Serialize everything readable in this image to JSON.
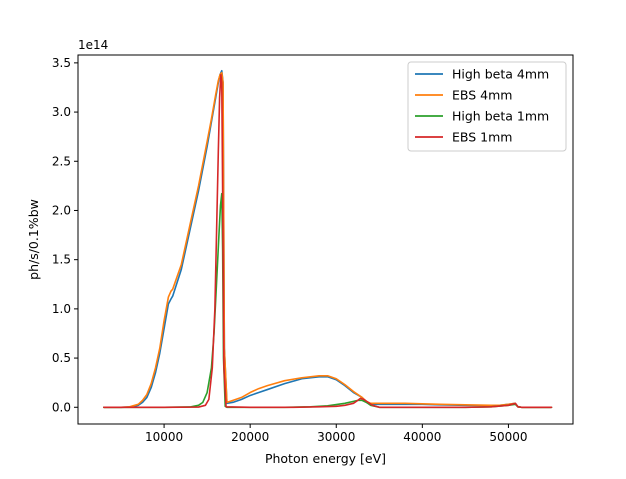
{
  "chart_data": {
    "type": "line",
    "xlabel": "Photon energy [eV]",
    "ylabel": "ph/s/0.1%bw",
    "y_offset_text": "1e14",
    "xlim": [
      0,
      57500
    ],
    "ylim": [
      -0.17,
      3.58
    ],
    "x_ticks": [
      10000,
      20000,
      30000,
      40000,
      50000
    ],
    "x_tick_labels": [
      "10000",
      "20000",
      "30000",
      "40000",
      "50000"
    ],
    "y_ticks": [
      0.0,
      0.5,
      1.0,
      1.5,
      2.0,
      2.5,
      3.0,
      3.5
    ],
    "y_tick_labels": [
      "0.0",
      "0.5",
      "1.0",
      "1.5",
      "2.0",
      "2.5",
      "3.0",
      "3.5"
    ],
    "grid": false,
    "legend_position": "top-right",
    "y_unit_scale": "1e14",
    "series": [
      {
        "name": "High beta 4mm",
        "color": "#1f77b4",
        "x": [
          3000,
          5000,
          6000,
          7000,
          7500,
          8000,
          8500,
          9000,
          9500,
          10000,
          10500,
          10800,
          11000,
          12000,
          13000,
          14000,
          15000,
          15500,
          16000,
          16300,
          16500,
          16700,
          16850,
          17000,
          17300,
          18000,
          19000,
          20000,
          21000,
          22000,
          24000,
          26000,
          28000,
          29000,
          30000,
          31000,
          32000,
          33000,
          33500,
          34000,
          35000,
          38000,
          40000,
          42000,
          45000,
          48000,
          49000,
          50000,
          50800,
          51100,
          51500,
          55000
        ],
        "y": [
          0,
          0,
          0.003,
          0.02,
          0.05,
          0.1,
          0.2,
          0.35,
          0.55,
          0.8,
          1.05,
          1.1,
          1.13,
          1.4,
          1.8,
          2.2,
          2.65,
          2.9,
          3.15,
          3.3,
          3.38,
          3.42,
          3.3,
          0.6,
          0.04,
          0.05,
          0.08,
          0.12,
          0.15,
          0.18,
          0.24,
          0.29,
          0.31,
          0.31,
          0.28,
          0.22,
          0.15,
          0.1,
          0.05,
          0.03,
          0.03,
          0.03,
          0.03,
          0.025,
          0.02,
          0.02,
          0.02,
          0.03,
          0.04,
          0.005,
          0,
          0
        ]
      },
      {
        "name": "EBS 4mm",
        "color": "#ff7f0e",
        "x": [
          3000,
          5000,
          6000,
          7000,
          7500,
          8000,
          8500,
          9000,
          9500,
          10000,
          10500,
          10800,
          11000,
          12000,
          13000,
          14000,
          15000,
          15500,
          16000,
          16300,
          16500,
          16700,
          16850,
          17000,
          17300,
          18000,
          19000,
          20000,
          21000,
          22000,
          24000,
          26000,
          28000,
          29000,
          30000,
          31000,
          32000,
          33000,
          33500,
          34000,
          35000,
          38000,
          40000,
          42000,
          45000,
          48000,
          49000,
          50000,
          50800,
          51100,
          51500,
          55000
        ],
        "y": [
          0,
          0,
          0.005,
          0.03,
          0.07,
          0.13,
          0.24,
          0.4,
          0.6,
          0.88,
          1.12,
          1.18,
          1.2,
          1.45,
          1.85,
          2.25,
          2.7,
          2.93,
          3.18,
          3.32,
          3.38,
          3.4,
          3.3,
          0.6,
          0.05,
          0.07,
          0.1,
          0.15,
          0.19,
          0.22,
          0.27,
          0.3,
          0.32,
          0.32,
          0.29,
          0.23,
          0.16,
          0.1,
          0.06,
          0.04,
          0.04,
          0.04,
          0.035,
          0.03,
          0.025,
          0.02,
          0.02,
          0.03,
          0.04,
          0.005,
          0,
          0
        ]
      },
      {
        "name": "High beta 1mm",
        "color": "#2ca02c",
        "x": [
          3000,
          10000,
          13000,
          14000,
          14500,
          15000,
          15500,
          15800,
          16000,
          16200,
          16400,
          16550,
          16700,
          16800,
          16900,
          17100,
          17300,
          20000,
          24000,
          27000,
          29000,
          31000,
          32000,
          32500,
          33000,
          33500,
          34000,
          35000,
          40000,
          45000,
          48000,
          50000,
          50800,
          51100,
          51500,
          55000
        ],
        "y": [
          0,
          0,
          0.003,
          0.02,
          0.05,
          0.15,
          0.4,
          0.75,
          1.1,
          1.45,
          1.8,
          2.05,
          2.17,
          1.6,
          0.5,
          0.01,
          0,
          0,
          0,
          0.005,
          0.015,
          0.04,
          0.06,
          0.07,
          0.07,
          0.05,
          0.02,
          0,
          0,
          0,
          0.005,
          0.02,
          0.03,
          0.005,
          0,
          0
        ]
      },
      {
        "name": "EBS 1mm",
        "color": "#d62728",
        "x": [
          3000,
          10000,
          14000,
          14800,
          15200,
          15600,
          15900,
          16100,
          16300,
          16450,
          16600,
          16700,
          16800,
          16950,
          17200,
          20000,
          25000,
          28000,
          30000,
          31000,
          32000,
          32500,
          32800,
          33200,
          33700,
          34200,
          35000,
          40000,
          45000,
          48000,
          50000,
          50800,
          51100,
          51500,
          55000
        ],
        "y": [
          0,
          0,
          0.002,
          0.02,
          0.08,
          0.4,
          1.0,
          1.8,
          2.6,
          3.15,
          3.38,
          3.3,
          2.2,
          0.4,
          0.005,
          0,
          0,
          0.005,
          0.01,
          0.02,
          0.04,
          0.07,
          0.09,
          0.08,
          0.05,
          0.02,
          0,
          0,
          0,
          0.005,
          0.02,
          0.04,
          0.005,
          0,
          0
        ]
      }
    ]
  }
}
